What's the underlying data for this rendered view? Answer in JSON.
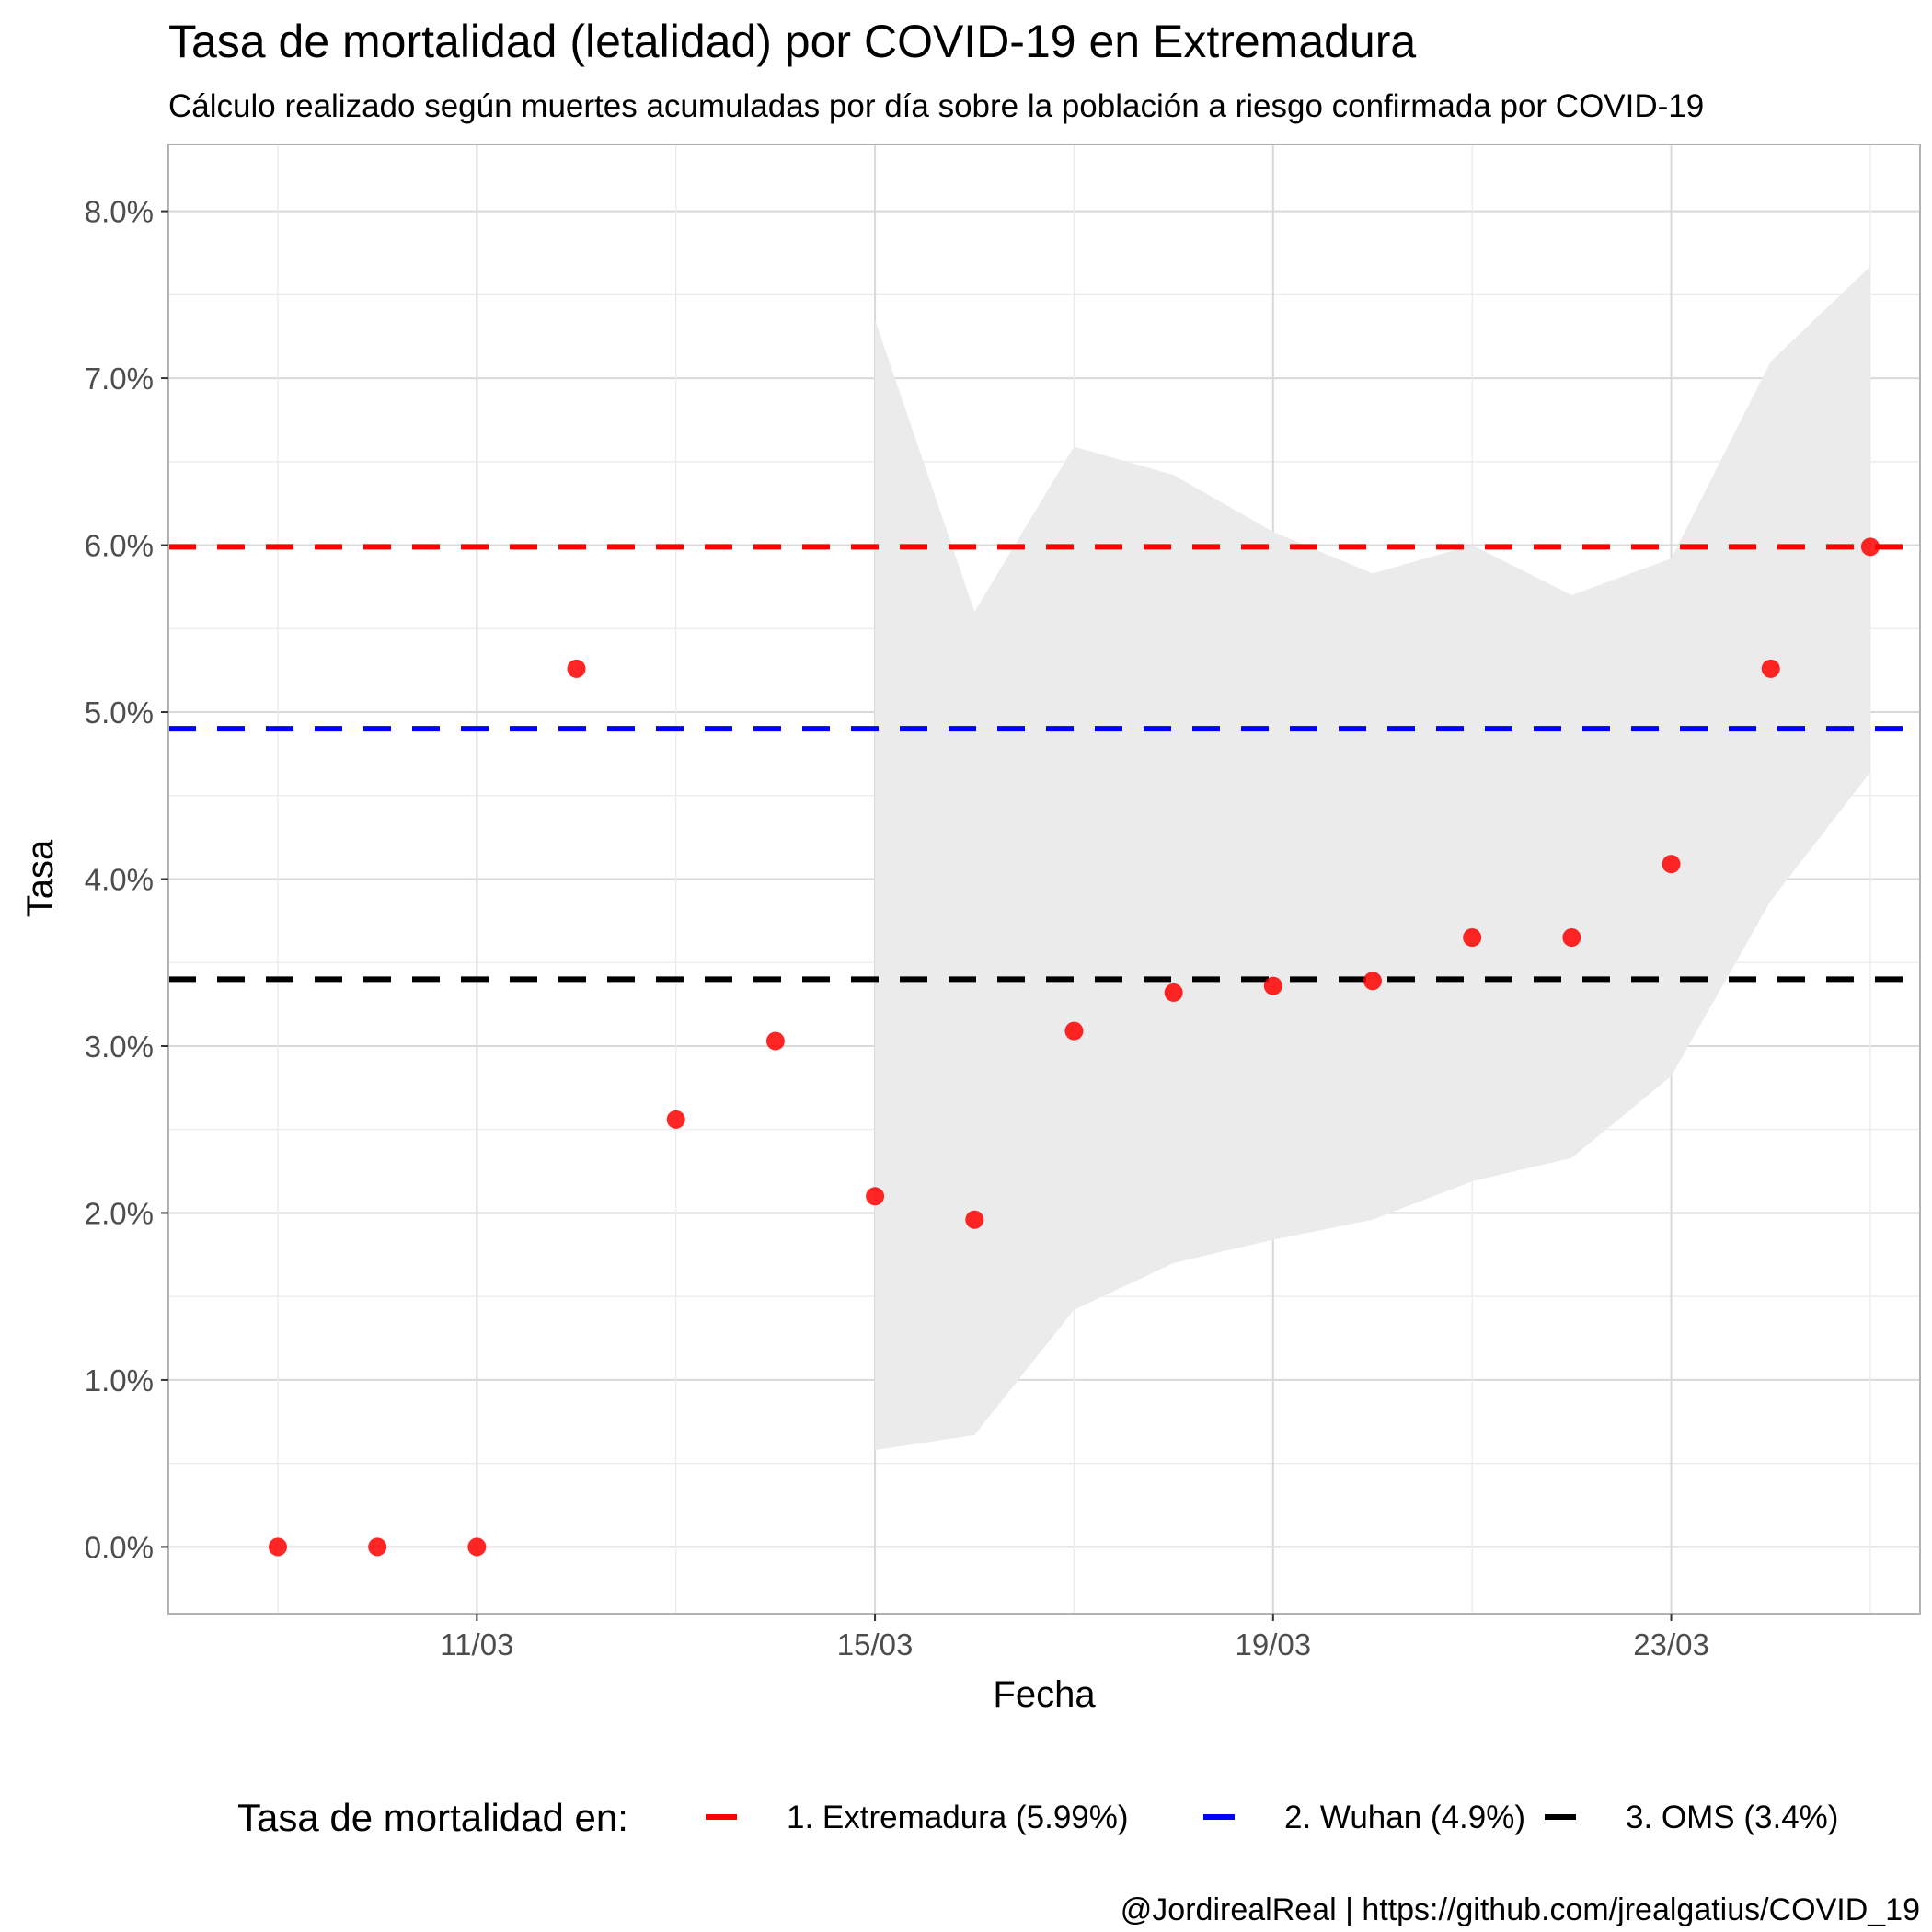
{
  "chart_data": {
    "type": "scatter",
    "title": "Tasa de mortalidad (letalidad) por COVID-19 en Extremadura",
    "subtitle": "Cálculo realizado según muertes acumuladas por día sobre la población a riesgo confirmada por COVID-19",
    "xlabel": "Fecha",
    "ylabel": "Tasa",
    "x_ticks": [
      "11/03",
      "15/03",
      "19/03",
      "23/03"
    ],
    "y_ticks": [
      "0.0%",
      "1.0%",
      "2.0%",
      "3.0%",
      "4.0%",
      "5.0%",
      "6.0%",
      "7.0%",
      "8.0%"
    ],
    "ylim": [
      -0.4,
      8.4
    ],
    "x_dates": [
      "09/03",
      "10/03",
      "11/03",
      "12/03",
      "13/03",
      "14/03",
      "15/03",
      "16/03",
      "17/03",
      "18/03",
      "19/03",
      "20/03",
      "21/03",
      "22/03",
      "23/03",
      "24/03",
      "25/03"
    ],
    "xlim": [
      "08/03",
      "25/03"
    ],
    "grid": true,
    "series": [
      {
        "values": [
          0.0,
          0.0,
          0.0,
          5.26,
          2.56,
          3.03,
          2.1,
          1.96,
          3.09,
          3.32,
          3.36,
          3.39,
          3.65,
          3.65,
          4.09,
          5.26,
          5.99
        ],
        "color": "#ff0000"
      }
    ],
    "confidence_band": {
      "x_dates": [
        "15/03",
        "16/03",
        "17/03",
        "18/03",
        "19/03",
        "20/03",
        "21/03",
        "22/03",
        "23/03",
        "24/03",
        "25/03"
      ],
      "lower": [
        0.58,
        0.67,
        1.42,
        1.7,
        1.84,
        1.96,
        2.19,
        2.33,
        2.82,
        3.87,
        4.64
      ],
      "upper": [
        7.35,
        5.6,
        6.59,
        6.42,
        6.08,
        5.83,
        6.0,
        5.7,
        5.92,
        7.1,
        7.67
      ],
      "color": "#ebebeb"
    },
    "reference_lines": [
      {
        "label": "1. Extremadura (5.99%)",
        "value": 5.99,
        "color": "#ff0000"
      },
      {
        "label": "2. Wuhan (4.9%)",
        "value": 4.9,
        "color": "#0000ff"
      },
      {
        "label": "3. OMS (3.4%)",
        "value": 3.4,
        "color": "#000000"
      }
    ],
    "legend": {
      "title": "Tasa de mortalidad en:",
      "placement": "bottom"
    },
    "caption": "@JordirealReal | https://github.com/jrealgatius/COVID_19"
  }
}
